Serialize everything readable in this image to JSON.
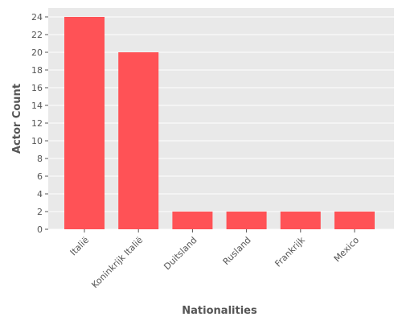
{
  "chart_data": {
    "type": "bar",
    "categories": [
      "Italië",
      "Koninkrijk Italië",
      "Duitsland",
      "Rusland",
      "Frankrijk",
      "Mexico"
    ],
    "values": [
      24,
      20,
      2,
      2,
      2,
      2
    ],
    "xlabel": "Nationalities",
    "ylabel": "Actor Count",
    "ylim": [
      0,
      25
    ],
    "yticks": [
      0,
      2,
      4,
      6,
      8,
      10,
      12,
      14,
      16,
      18,
      20,
      22,
      24
    ],
    "grid": true,
    "legend": "none",
    "colors": {
      "bar": "#ff5256",
      "plot_background": "#e9e9e9",
      "grid": "#ffffff",
      "text": "#555555"
    }
  }
}
